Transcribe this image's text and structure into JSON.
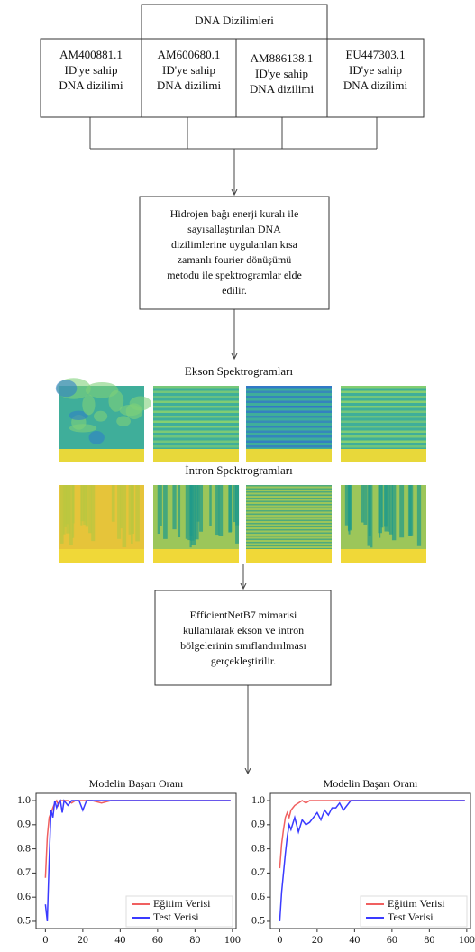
{
  "header": {
    "title": "DNA Dizilimleri"
  },
  "sequences": [
    [
      "AM400881.1",
      "ID'ye sahip",
      "DNA dizilimi"
    ],
    [
      "AM600680.1",
      "ID'ye sahip",
      "DNA dizilimi"
    ],
    [
      "AM886138.1",
      "ID'ye sahip",
      "DNA dizilimi"
    ],
    [
      "EU447303.1",
      "ID'ye sahip",
      "DNA dizilimi"
    ]
  ],
  "step1": [
    "Hidrojen bağı enerji kuralı ile",
    "sayısallaştırılan DNA",
    "dizilimlerine uygulanlan kısa",
    "zamanlı fourier dönüşümü",
    "metodu ile spektrogramlar elde",
    "edilir."
  ],
  "exon_title": "Ekson Spektrogramları",
  "intron_title": "İntron Spektrogramları",
  "step2": [
    "EfficientNetB7 mimarisi",
    "kullanılarak ekson ve intron",
    "bölgelerinin sınıflandırılması",
    "gerçekleştirilir."
  ],
  "chart_data": [
    {
      "type": "line",
      "title": "Modelin Başarı Oranı",
      "x": [
        0,
        1,
        2,
        3,
        4,
        5,
        6,
        7,
        8,
        9,
        10,
        12,
        14,
        16,
        18,
        20,
        22,
        25,
        30,
        35,
        40,
        50,
        60,
        70,
        80,
        90,
        99
      ],
      "series": [
        {
          "name": "Eğitim Verisi",
          "color": "#f06060",
          "values": [
            0.68,
            0.85,
            0.93,
            0.95,
            0.97,
            0.99,
            1.0,
            0.98,
            1.0,
            1.0,
            1.0,
            1.0,
            0.99,
            1.0,
            1.0,
            1.0,
            1.0,
            1.0,
            0.99,
            1.0,
            1.0,
            1.0,
            1.0,
            1.0,
            1.0,
            1.0,
            1.0
          ]
        },
        {
          "name": "Test Verisi",
          "color": "#3a3aff",
          "values": [
            0.57,
            0.5,
            0.75,
            0.96,
            0.93,
            1.0,
            0.97,
            0.99,
            1.0,
            0.95,
            1.0,
            0.98,
            1.0,
            1.0,
            1.0,
            0.96,
            1.0,
            1.0,
            1.0,
            1.0,
            1.0,
            1.0,
            1.0,
            1.0,
            1.0,
            1.0,
            1.0
          ]
        }
      ],
      "xlim": [
        -5,
        102
      ],
      "xticks": [
        0,
        20,
        40,
        60,
        80,
        100
      ],
      "ylim": [
        0.47,
        1.03
      ],
      "yticks": [
        0.5,
        0.6,
        0.7,
        0.8,
        0.9,
        {
          "value": 1,
          "label": "1.0"
        }
      ],
      "legend": "lower right"
    },
    {
      "type": "line",
      "title": "Modelin Başarı Oranı",
      "x": [
        0,
        1,
        2,
        3,
        4,
        5,
        6,
        8,
        10,
        12,
        14,
        16,
        18,
        20,
        22,
        24,
        26,
        28,
        30,
        32,
        34,
        36,
        38,
        40,
        50,
        60,
        70,
        80,
        90,
        99
      ],
      "series": [
        {
          "name": "Eğitim Verisi",
          "color": "#f06060",
          "values": [
            0.72,
            0.82,
            0.88,
            0.93,
            0.95,
            0.93,
            0.96,
            0.98,
            0.99,
            1.0,
            0.99,
            1.0,
            1.0,
            1.0,
            1.0,
            1.0,
            1.0,
            1.0,
            1.0,
            1.0,
            1.0,
            1.0,
            1.0,
            1.0,
            1.0,
            1.0,
            1.0,
            1.0,
            1.0,
            1.0
          ]
        },
        {
          "name": "Test Verisi",
          "color": "#3a3aff",
          "values": [
            0.5,
            0.62,
            0.7,
            0.78,
            0.85,
            0.9,
            0.88,
            0.93,
            0.87,
            0.92,
            0.9,
            0.91,
            0.93,
            0.95,
            0.92,
            0.96,
            0.94,
            0.97,
            0.97,
            0.99,
            0.96,
            0.98,
            1.0,
            1.0,
            1.0,
            1.0,
            1.0,
            1.0,
            1.0,
            1.0
          ]
        }
      ],
      "xlim": [
        -5,
        102
      ],
      "xticks": [
        0,
        20,
        40,
        60,
        80,
        100
      ],
      "ylim": [
        0.47,
        1.03
      ],
      "yticks": [
        0.5,
        0.6,
        0.7,
        0.8,
        0.9,
        {
          "value": 1,
          "label": "1.0"
        }
      ],
      "legend": "lower right"
    }
  ]
}
